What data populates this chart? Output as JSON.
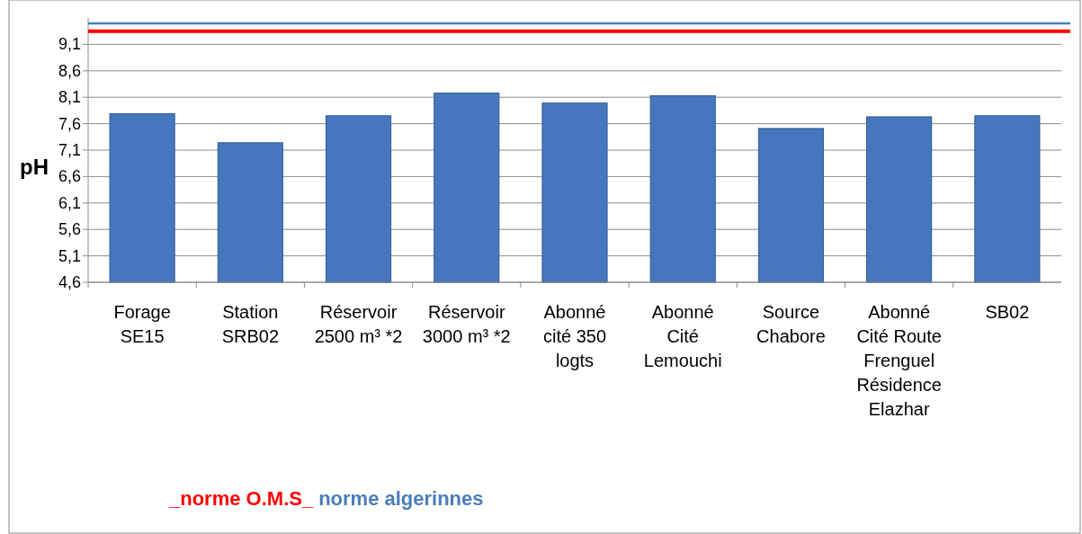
{
  "chart_data": {
    "type": "bar",
    "ylabel": "pH",
    "categories": [
      "Forage SE15",
      "Station SRB02",
      "Réservoir 2500 m³ *2",
      "Réservoir 3000 m³ *2",
      "Abonné cité 350 logts",
      "Abonné Cité Lemouchi",
      "Source Chabore",
      "Abonné Cité Route Frenguel Résidence Elazhar",
      "SB02"
    ],
    "values": [
      7.79,
      7.24,
      7.75,
      8.18,
      7.99,
      8.13,
      7.51,
      7.73,
      7.75
    ],
    "color": "#4677be",
    "ylim": [
      4.6,
      9.6
    ],
    "yticks": [
      {
        "value": 4.6,
        "label": "4,6"
      },
      {
        "value": 5.1,
        "label": "5,1"
      },
      {
        "value": 5.6,
        "label": "5,6"
      },
      {
        "value": 6.1,
        "label": "6,1"
      },
      {
        "value": 6.6,
        "label": "6,6"
      },
      {
        "value": 7.1,
        "label": "7,1"
      },
      {
        "value": 7.6,
        "label": "7,6"
      },
      {
        "value": 8.1,
        "label": "8,1"
      },
      {
        "value": 8.6,
        "label": "8,6"
      },
      {
        "value": 9.1,
        "label": "9,1"
      }
    ],
    "grid": "y",
    "legend": "bottom left",
    "ref_lines": [
      {
        "axis": "y",
        "value": 9.35,
        "label": "_norme O.M.S_",
        "color": "#ff0000"
      },
      {
        "axis": "y",
        "value": 9.5,
        "label": "norme algerinnes",
        "color": "#4a7ebb"
      }
    ]
  }
}
